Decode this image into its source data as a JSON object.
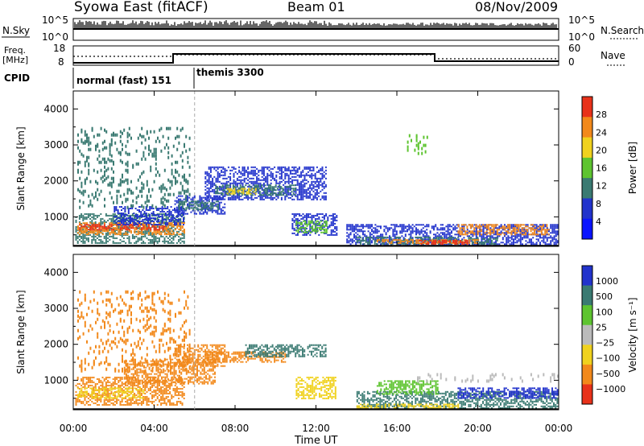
{
  "header": {
    "station": "Syowa East (fitACF)",
    "beam": "Beam 01",
    "date": "08/Nov/2009"
  },
  "top_panel": {
    "left_label": "N.Sky",
    "right_label": "N.Search",
    "left_ticks": [
      "10^5",
      "10^0"
    ],
    "right_ticks": [
      "10^5",
      "10^0"
    ]
  },
  "freq_panel": {
    "left_label_line1": "Freq.",
    "left_label_line2": "[MHz]",
    "right_label": "Nave",
    "left_ticks": [
      "18",
      "8"
    ],
    "right_ticks": [
      "60",
      "0"
    ]
  },
  "cpid": {
    "label": "CPID",
    "segments": [
      {
        "name": "normal (fast) 151",
        "start_h": 0,
        "end_h": 6
      },
      {
        "name": "themis 3300",
        "start_h": 6,
        "end_h": 24
      }
    ]
  },
  "x_axis": {
    "label": "Time UT",
    "ticks": [
      "00:00",
      "04:00",
      "08:00",
      "12:00",
      "16:00",
      "20:00",
      "00:00"
    ],
    "range_h": [
      0,
      24
    ]
  },
  "colors": {
    "blue": "#2233cc",
    "teal": "#3a7a72",
    "green": "#5ec430",
    "yellow": "#f0d21e",
    "orange": "#f2891b",
    "red": "#e8321a",
    "gray": "#bbbbbb"
  },
  "chart_data": [
    {
      "type": "heatmap",
      "name": "power",
      "ylabel": "Slant Range [km]",
      "ylim": [
        180,
        4500
      ],
      "yticks": [
        "1000",
        "2000",
        "3000",
        "4000"
      ],
      "ytick_values": [
        1000,
        2000,
        3000,
        4000
      ],
      "colorbar": {
        "label": "Power [dB]",
        "ticks": [
          "28",
          "24",
          "20",
          "16",
          "12",
          "8",
          "4"
        ],
        "colors": [
          "#e8321a",
          "#f2891b",
          "#f0d21e",
          "#5ec430",
          "#3a7a72",
          "#2233cc",
          "#0a14ff"
        ]
      },
      "regions": [
        {
          "t0": 0.1,
          "t1": 5.5,
          "r0": 250,
          "r1": 1100,
          "c": "teal"
        },
        {
          "t0": 0.2,
          "t1": 5.5,
          "r0": 500,
          "r1": 850,
          "c": "orange"
        },
        {
          "t0": 0.2,
          "t1": 4.5,
          "r0": 650,
          "r1": 800,
          "c": "red"
        },
        {
          "t0": 2.0,
          "t1": 5.5,
          "r0": 800,
          "r1": 1300,
          "c": "blue"
        },
        {
          "t0": 5.0,
          "t1": 7.5,
          "r0": 1100,
          "r1": 1600,
          "c": "blue"
        },
        {
          "t0": 5.2,
          "t1": 7.2,
          "r0": 1200,
          "r1": 1450,
          "c": "teal"
        },
        {
          "t0": 6.5,
          "t1": 12.5,
          "r0": 1500,
          "r1": 2400,
          "c": "blue"
        },
        {
          "t0": 7.0,
          "t1": 11.0,
          "r0": 1600,
          "r1": 1900,
          "c": "teal"
        },
        {
          "t0": 7.5,
          "t1": 9.0,
          "r0": 1650,
          "r1": 1800,
          "c": "yellow"
        },
        {
          "t0": 10.8,
          "t1": 13.0,
          "r0": 500,
          "r1": 1100,
          "c": "blue"
        },
        {
          "t0": 11.0,
          "t1": 12.5,
          "r0": 550,
          "r1": 900,
          "c": "green"
        },
        {
          "t0": 13.5,
          "t1": 24.0,
          "r0": 200,
          "r1": 800,
          "c": "blue"
        },
        {
          "t0": 14.0,
          "t1": 21.0,
          "r0": 250,
          "r1": 450,
          "c": "teal"
        },
        {
          "t0": 15.0,
          "t1": 20.0,
          "r0": 250,
          "r1": 380,
          "c": "orange"
        },
        {
          "t0": 17.0,
          "t1": 19.5,
          "r0": 260,
          "r1": 360,
          "c": "red"
        },
        {
          "t0": 19.0,
          "t1": 23.5,
          "r0": 500,
          "r1": 800,
          "c": "orange"
        },
        {
          "t0": 0.2,
          "t1": 5.8,
          "r0": 1300,
          "r1": 3500,
          "c": "teal",
          "sparse": true
        },
        {
          "t0": 16.5,
          "t1": 17.5,
          "r0": 2700,
          "r1": 3300,
          "c": "green",
          "sparse": true
        }
      ]
    },
    {
      "type": "heatmap",
      "name": "velocity",
      "ylabel": "Slant Range [km]",
      "ylim": [
        180,
        4500
      ],
      "yticks": [
        "1000",
        "2000",
        "3000",
        "4000"
      ],
      "ytick_values": [
        1000,
        2000,
        3000,
        4000
      ],
      "colorbar": {
        "label": "Velocity [m s⁻¹]",
        "ticks": [
          "1000",
          "500",
          "100",
          "25",
          "−25",
          "−100",
          "−500",
          "−1000"
        ],
        "colors": [
          "#2233cc",
          "#3a7a72",
          "#5ec430",
          "#bbbbbb",
          "#f0d21e",
          "#f2891b",
          "#e8321a"
        ]
      },
      "regions": [
        {
          "t0": 0.1,
          "t1": 5.5,
          "r0": 300,
          "r1": 1100,
          "c": "orange"
        },
        {
          "t0": 0.2,
          "t1": 3.5,
          "r0": 500,
          "r1": 800,
          "c": "yellow"
        },
        {
          "t0": 2.5,
          "t1": 7.0,
          "r0": 900,
          "r1": 1600,
          "c": "orange"
        },
        {
          "t0": 5.0,
          "t1": 7.5,
          "r0": 1400,
          "r1": 2000,
          "c": "orange"
        },
        {
          "t0": 6.5,
          "t1": 10.5,
          "r0": 1500,
          "r1": 1800,
          "c": "orange"
        },
        {
          "t0": 8.5,
          "t1": 12.5,
          "r0": 1650,
          "r1": 2000,
          "c": "teal"
        },
        {
          "t0": 11.0,
          "t1": 13.0,
          "r0": 500,
          "r1": 1100,
          "c": "yellow"
        },
        {
          "t0": 14.0,
          "t1": 24.0,
          "r0": 200,
          "r1": 700,
          "c": "teal"
        },
        {
          "t0": 14.0,
          "t1": 19.0,
          "r0": 220,
          "r1": 350,
          "c": "yellow"
        },
        {
          "t0": 19.0,
          "t1": 24.0,
          "r0": 500,
          "r1": 800,
          "c": "blue"
        },
        {
          "t0": 15.0,
          "t1": 18.0,
          "r0": 600,
          "r1": 1000,
          "c": "green"
        },
        {
          "t0": 0.2,
          "t1": 5.8,
          "r0": 1300,
          "r1": 3500,
          "c": "orange",
          "sparse": true
        },
        {
          "t0": 17.0,
          "t1": 24.0,
          "r0": 1000,
          "r1": 1200,
          "c": "gray",
          "sparse": true
        }
      ]
    }
  ]
}
